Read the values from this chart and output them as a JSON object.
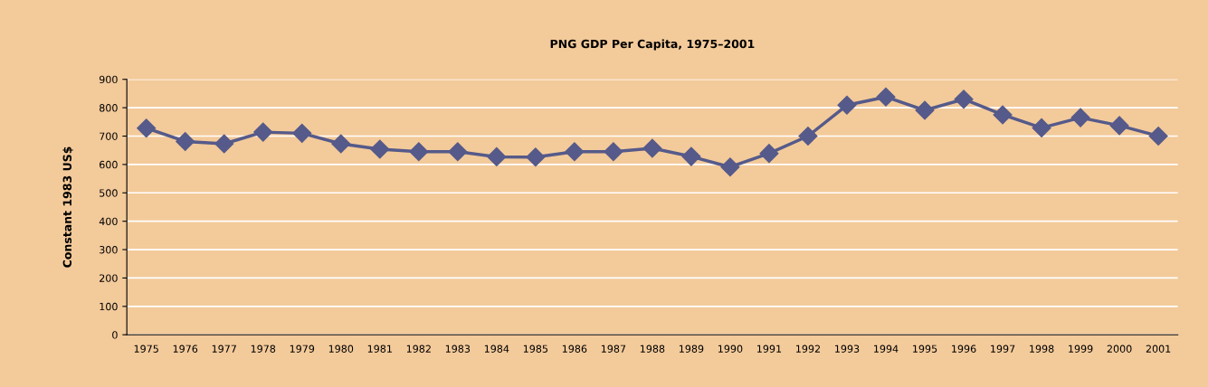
{
  "chart_data": {
    "type": "line",
    "title": "PNG GDP Per Capita, 1975–2001",
    "ylabel": "Constant 1983 US$",
    "categories": [
      "1975",
      "1976",
      "1977",
      "1978",
      "1979",
      "1980",
      "1981",
      "1982",
      "1983",
      "1984",
      "1985",
      "1986",
      "1987",
      "1988",
      "1989",
      "1990",
      "1991",
      "1992",
      "1993",
      "1994",
      "1995",
      "1996",
      "1997",
      "1998",
      "1999",
      "2000",
      "2001"
    ],
    "series": [
      {
        "color": "#555a8a",
        "values": [
          728,
          681,
          673,
          714,
          710,
          673,
          654,
          645,
          645,
          627,
          626,
          645,
          645,
          657,
          628,
          591,
          639,
          700,
          809,
          838,
          791,
          830,
          775,
          729,
          765,
          737,
          700
        ]
      }
    ],
    "ylim": [
      0,
      900
    ],
    "yticks": [
      0,
      100,
      200,
      300,
      400,
      500,
      600,
      700,
      800,
      900
    ],
    "grid": "y",
    "marker": "diamond",
    "line_style": "solid"
  }
}
